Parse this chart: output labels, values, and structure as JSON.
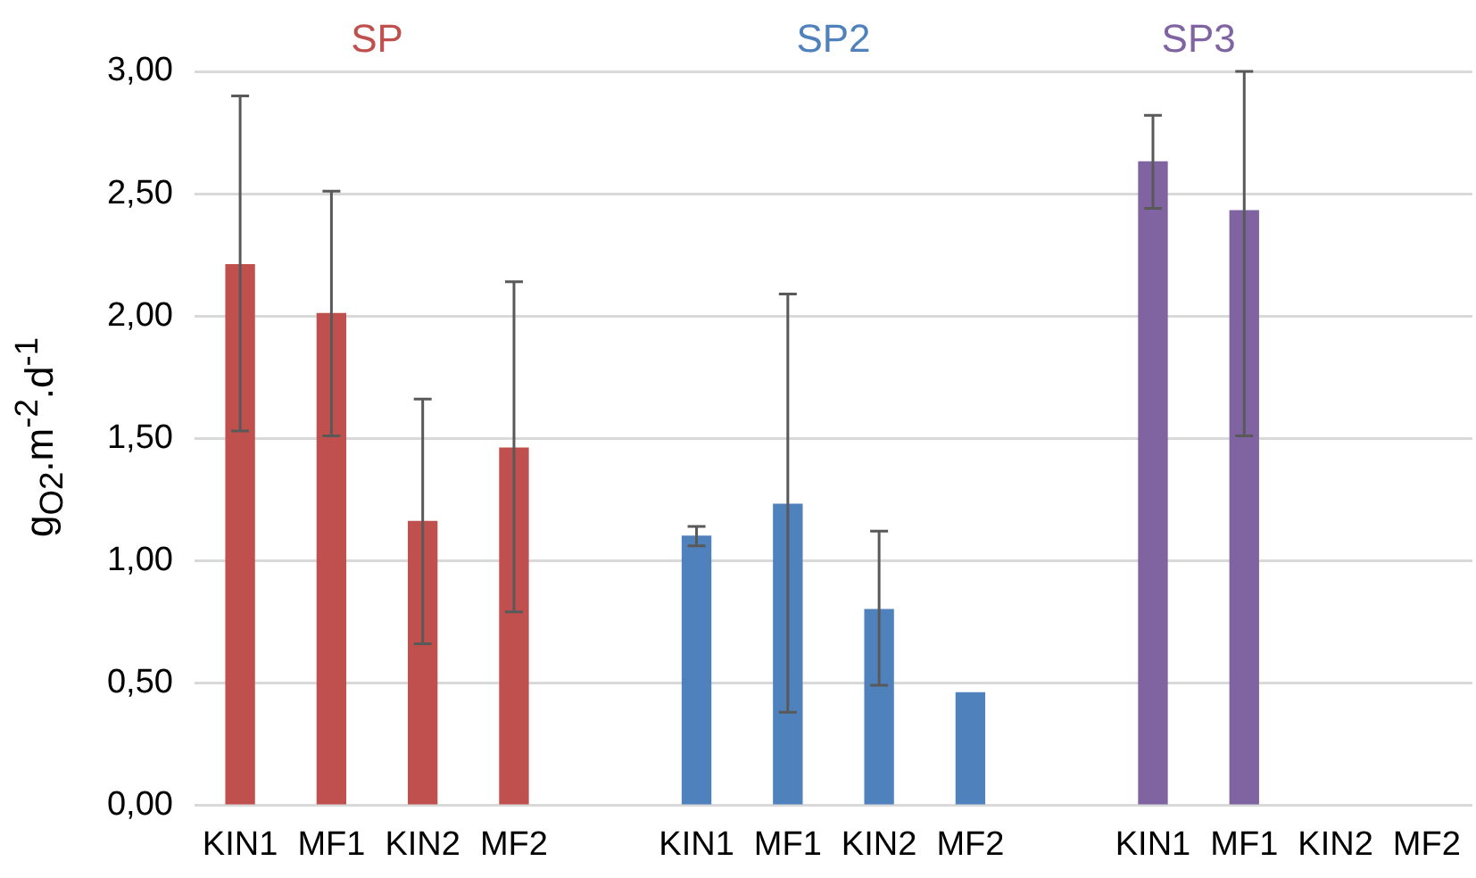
{
  "chart_data": {
    "type": "bar",
    "ylabel": "g$_{O2}$.m$^{-2}$.d$^{-1}$",
    "categories": [
      "KIN1",
      "MF1",
      "KIN2",
      "MF2",
      null,
      "KIN1",
      "MF1",
      "KIN2",
      "MF2",
      null,
      "KIN1",
      "MF1",
      "KIN2",
      "MF2"
    ],
    "series": [
      {
        "name": "SP",
        "color": "#c0504d",
        "values": [
          2.21,
          2.01,
          1.16,
          1.46,
          null,
          null,
          null,
          null,
          null,
          null,
          null,
          null,
          null,
          null
        ],
        "errors": [
          [
            1.53,
            2.9
          ],
          [
            1.51,
            2.51
          ],
          [
            0.66,
            1.66
          ],
          [
            0.79,
            2.14
          ],
          null,
          null,
          null,
          null,
          null,
          null,
          null,
          null,
          null,
          null
        ]
      },
      {
        "name": "SP2",
        "color": "#4f81bd",
        "values": [
          null,
          null,
          null,
          null,
          null,
          1.1,
          1.23,
          0.8,
          0.46,
          null,
          null,
          null,
          null,
          null
        ],
        "errors": [
          null,
          null,
          null,
          null,
          null,
          [
            1.06,
            1.14
          ],
          [
            0.38,
            2.09
          ],
          [
            0.49,
            1.12
          ],
          null,
          null,
          null,
          null,
          null,
          null
        ]
      },
      {
        "name": "SP3",
        "color": "#8064a2",
        "values": [
          null,
          null,
          null,
          null,
          null,
          null,
          null,
          null,
          null,
          null,
          2.63,
          2.43,
          null,
          null
        ],
        "errors": [
          null,
          null,
          null,
          null,
          null,
          null,
          null,
          null,
          null,
          null,
          [
            2.44,
            2.82
          ],
          [
            1.51,
            3.0
          ],
          null,
          null
        ]
      }
    ],
    "ylim": [
      0,
      3
    ],
    "yticks": [
      {
        "value": 0,
        "label": "0,00"
      },
      {
        "value": 0.5,
        "label": "0,50"
      },
      {
        "value": 1,
        "label": "1,00"
      },
      {
        "value": 1.5,
        "label": "1,50"
      },
      {
        "value": 2,
        "label": "2,00"
      },
      {
        "value": 2.5,
        "label": "2,50"
      },
      {
        "value": 3,
        "label": "3,00"
      }
    ],
    "grid": "y",
    "legend": false
  }
}
